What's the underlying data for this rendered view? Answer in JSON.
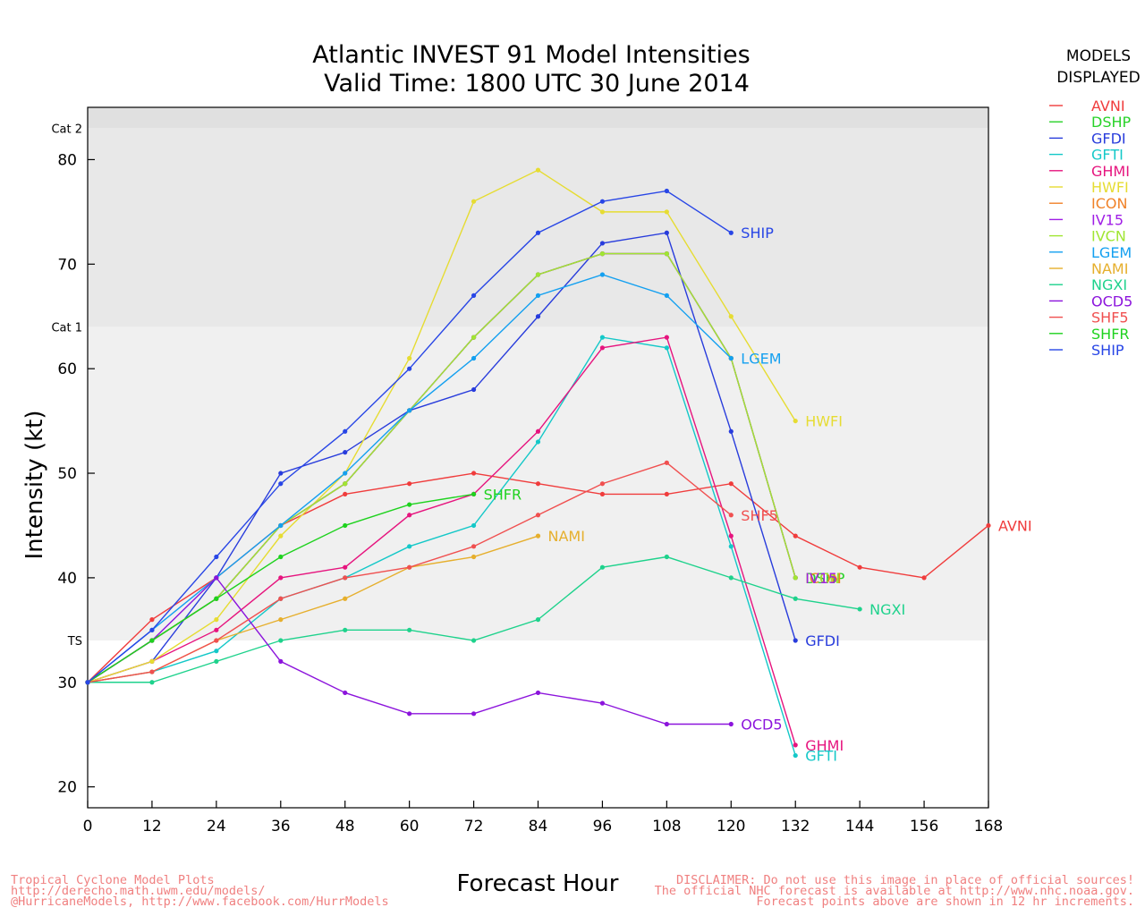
{
  "chart_data": {
    "type": "line",
    "title": "Atlantic INVEST 91 Model Intensities",
    "subtitle": "Valid Time: 1800 UTC 30 June 2014",
    "xlabel": "Forecast Hour",
    "ylabel": "Intensity (kt)",
    "xlim": [
      0,
      168
    ],
    "ylim": [
      18,
      85
    ],
    "xticks": [
      0,
      12,
      24,
      36,
      48,
      60,
      72,
      84,
      96,
      108,
      120,
      132,
      144,
      156,
      168
    ],
    "yticks": [
      20,
      30,
      40,
      50,
      60,
      70,
      80
    ],
    "grid": false,
    "bands": [
      {
        "label": "TS",
        "from": 34,
        "to": 64,
        "color": "#f0f0f0"
      },
      {
        "label": "Cat 1",
        "from": 64,
        "to": 83,
        "color": "#e8e8e8"
      },
      {
        "label": "Cat 2",
        "from": 83,
        "to": 85,
        "color": "#e0e0e0"
      }
    ],
    "legend": {
      "title_line1": "MODELS",
      "title_line2": "DISPLAYED",
      "placement": "right"
    },
    "series": [
      {
        "name": "AVNI",
        "color": "#f03c3c",
        "points": [
          [
            0,
            30
          ],
          [
            12,
            36
          ],
          [
            24,
            40
          ],
          [
            36,
            45
          ],
          [
            48,
            48
          ],
          [
            60,
            49
          ],
          [
            72,
            50
          ],
          [
            84,
            49
          ],
          [
            96,
            48
          ],
          [
            108,
            48
          ],
          [
            120,
            49
          ],
          [
            132,
            44
          ],
          [
            144,
            41
          ],
          [
            156,
            40
          ],
          [
            168,
            45
          ]
        ]
      },
      {
        "name": "DSHP",
        "color": "#28d228",
        "points": [
          [
            0,
            30
          ],
          [
            12,
            34
          ],
          [
            24,
            38
          ],
          [
            36,
            45
          ],
          [
            48,
            49
          ],
          [
            60,
            56
          ],
          [
            72,
            63
          ],
          [
            84,
            69
          ],
          [
            96,
            71
          ],
          [
            108,
            71
          ],
          [
            120,
            61
          ],
          [
            132,
            40
          ]
        ]
      },
      {
        "name": "GFDI",
        "color": "#283cdc",
        "points": [
          [
            0,
            30
          ],
          [
            12,
            32
          ],
          [
            24,
            40
          ],
          [
            36,
            50
          ],
          [
            48,
            52
          ],
          [
            60,
            56
          ],
          [
            72,
            58
          ],
          [
            84,
            65
          ],
          [
            96,
            72
          ],
          [
            108,
            73
          ],
          [
            120,
            54
          ],
          [
            132,
            34
          ]
        ]
      },
      {
        "name": "GFTI",
        "color": "#14c8c8",
        "points": [
          [
            0,
            30
          ],
          [
            12,
            31
          ],
          [
            24,
            33
          ],
          [
            36,
            38
          ],
          [
            48,
            40
          ],
          [
            60,
            43
          ],
          [
            72,
            45
          ],
          [
            84,
            53
          ],
          [
            96,
            63
          ],
          [
            108,
            62
          ],
          [
            120,
            43
          ],
          [
            132,
            23
          ]
        ]
      },
      {
        "name": "GHMI",
        "color": "#e6147e",
        "points": [
          [
            0,
            30
          ],
          [
            12,
            32
          ],
          [
            24,
            35
          ],
          [
            36,
            40
          ],
          [
            48,
            41
          ],
          [
            60,
            46
          ],
          [
            72,
            48
          ],
          [
            84,
            54
          ],
          [
            96,
            62
          ],
          [
            108,
            63
          ],
          [
            120,
            44
          ],
          [
            132,
            24
          ]
        ]
      },
      {
        "name": "HWFI",
        "color": "#e6dc32",
        "points": [
          [
            0,
            30
          ],
          [
            12,
            32
          ],
          [
            24,
            36
          ],
          [
            36,
            44
          ],
          [
            48,
            50
          ],
          [
            60,
            61
          ],
          [
            72,
            76
          ],
          [
            84,
            79
          ],
          [
            96,
            75
          ],
          [
            108,
            75
          ],
          [
            120,
            65
          ],
          [
            132,
            55
          ]
        ]
      },
      {
        "name": "ICON",
        "color": "#f08228",
        "points": [
          [
            0,
            30
          ],
          [
            12,
            34
          ],
          [
            24,
            38
          ],
          [
            36,
            45
          ],
          [
            48,
            49
          ],
          [
            60,
            56
          ],
          [
            72,
            63
          ],
          [
            84,
            69
          ],
          [
            96,
            71
          ],
          [
            108,
            71
          ],
          [
            120,
            61
          ],
          [
            132,
            40
          ]
        ]
      },
      {
        "name": "IV15",
        "color": "#a01ee6",
        "points": [
          [
            0,
            30
          ],
          [
            12,
            34
          ],
          [
            24,
            38
          ],
          [
            36,
            45
          ],
          [
            48,
            49
          ],
          [
            60,
            56
          ],
          [
            72,
            63
          ],
          [
            84,
            69
          ],
          [
            96,
            71
          ],
          [
            108,
            71
          ],
          [
            120,
            61
          ],
          [
            132,
            40
          ]
        ]
      },
      {
        "name": "IVCN",
        "color": "#a0e632",
        "points": [
          [
            0,
            30
          ],
          [
            12,
            34
          ],
          [
            24,
            38
          ],
          [
            36,
            45
          ],
          [
            48,
            49
          ],
          [
            60,
            56
          ],
          [
            72,
            63
          ],
          [
            84,
            69
          ],
          [
            96,
            71
          ],
          [
            108,
            71
          ],
          [
            120,
            61
          ],
          [
            132,
            40
          ]
        ]
      },
      {
        "name": "LGEM",
        "color": "#14a0f0",
        "points": [
          [
            0,
            30
          ],
          [
            12,
            35
          ],
          [
            24,
            40
          ],
          [
            36,
            45
          ],
          [
            48,
            50
          ],
          [
            60,
            56
          ],
          [
            72,
            61
          ],
          [
            84,
            67
          ],
          [
            96,
            69
          ],
          [
            108,
            67
          ],
          [
            120,
            61
          ]
        ]
      },
      {
        "name": "NAMI",
        "color": "#e6af2d",
        "points": [
          [
            0,
            30
          ],
          [
            12,
            31
          ],
          [
            24,
            34
          ],
          [
            36,
            36
          ],
          [
            48,
            38
          ],
          [
            60,
            41
          ],
          [
            72,
            42
          ],
          [
            84,
            44
          ]
        ]
      },
      {
        "name": "NGXI",
        "color": "#1ed28c",
        "points": [
          [
            0,
            30
          ],
          [
            12,
            30
          ],
          [
            24,
            32
          ],
          [
            36,
            34
          ],
          [
            48,
            35
          ],
          [
            60,
            35
          ],
          [
            72,
            34
          ],
          [
            84,
            36
          ],
          [
            96,
            41
          ],
          [
            108,
            42
          ],
          [
            120,
            40
          ],
          [
            132,
            38
          ],
          [
            144,
            37
          ]
        ]
      },
      {
        "name": "OCD5",
        "color": "#8c14dc",
        "points": [
          [
            0,
            30
          ],
          [
            12,
            34
          ],
          [
            24,
            40
          ],
          [
            36,
            32
          ],
          [
            48,
            29
          ],
          [
            60,
            27
          ],
          [
            72,
            27
          ],
          [
            84,
            29
          ],
          [
            96,
            28
          ],
          [
            108,
            26
          ],
          [
            120,
            26
          ]
        ]
      },
      {
        "name": "SHF5",
        "color": "#f05050",
        "points": [
          [
            0,
            30
          ],
          [
            12,
            31
          ],
          [
            24,
            34
          ],
          [
            36,
            38
          ],
          [
            48,
            40
          ],
          [
            60,
            41
          ],
          [
            72,
            43
          ],
          [
            84,
            46
          ],
          [
            96,
            49
          ],
          [
            108,
            51
          ],
          [
            120,
            46
          ]
        ]
      },
      {
        "name": "SHFR",
        "color": "#1ed21e",
        "points": [
          [
            0,
            30
          ],
          [
            12,
            34
          ],
          [
            24,
            38
          ],
          [
            36,
            42
          ],
          [
            48,
            45
          ],
          [
            60,
            47
          ],
          [
            72,
            48
          ]
        ]
      },
      {
        "name": "SHIP",
        "color": "#2846e6",
        "points": [
          [
            0,
            30
          ],
          [
            12,
            35
          ],
          [
            24,
            42
          ],
          [
            36,
            49
          ],
          [
            48,
            54
          ],
          [
            60,
            60
          ],
          [
            72,
            67
          ],
          [
            84,
            73
          ],
          [
            96,
            76
          ],
          [
            108,
            77
          ],
          [
            120,
            73
          ]
        ]
      }
    ],
    "end_labels": [
      {
        "text": "AVNI",
        "series": "AVNI"
      },
      {
        "text": "SHIP",
        "series": "SHIP"
      },
      {
        "text": "DSHP",
        "series": "DSHP"
      },
      {
        "text": "LGEM",
        "series": "LGEM"
      },
      {
        "text": "ICON",
        "series": "ICON"
      },
      {
        "text": "HWFI",
        "series": "HWFI"
      },
      {
        "text": "SHFR",
        "series": "SHFR"
      },
      {
        "text": "SHF5",
        "series": "SHF5"
      },
      {
        "text": "NAMI",
        "series": "NAMI"
      },
      {
        "text": "IVCN",
        "series": "IVCN"
      },
      {
        "text": "IV15",
        "series": "IV15"
      },
      {
        "text": "NGXI",
        "series": "NGXI"
      },
      {
        "text": "GFDI",
        "series": "GFDI"
      },
      {
        "text": "OCD5",
        "series": "OCD5"
      },
      {
        "text": "GHMI",
        "series": "GHMI"
      },
      {
        "text": "GFTI",
        "series": "GFTI"
      }
    ]
  },
  "footer": {
    "left": [
      "Tropical Cyclone Model Plots",
      "http://derecho.math.uwm.edu/models/",
      "@HurricaneModels, http://www.facebook.com/HurrModels"
    ],
    "right": [
      "DISCLAIMER: Do not use this image in place of official sources!",
      "The official NHC forecast is available at http://www.nhc.noaa.gov.",
      "Forecast points above are shown in 12 hr increments."
    ],
    "color": "#f08080"
  }
}
